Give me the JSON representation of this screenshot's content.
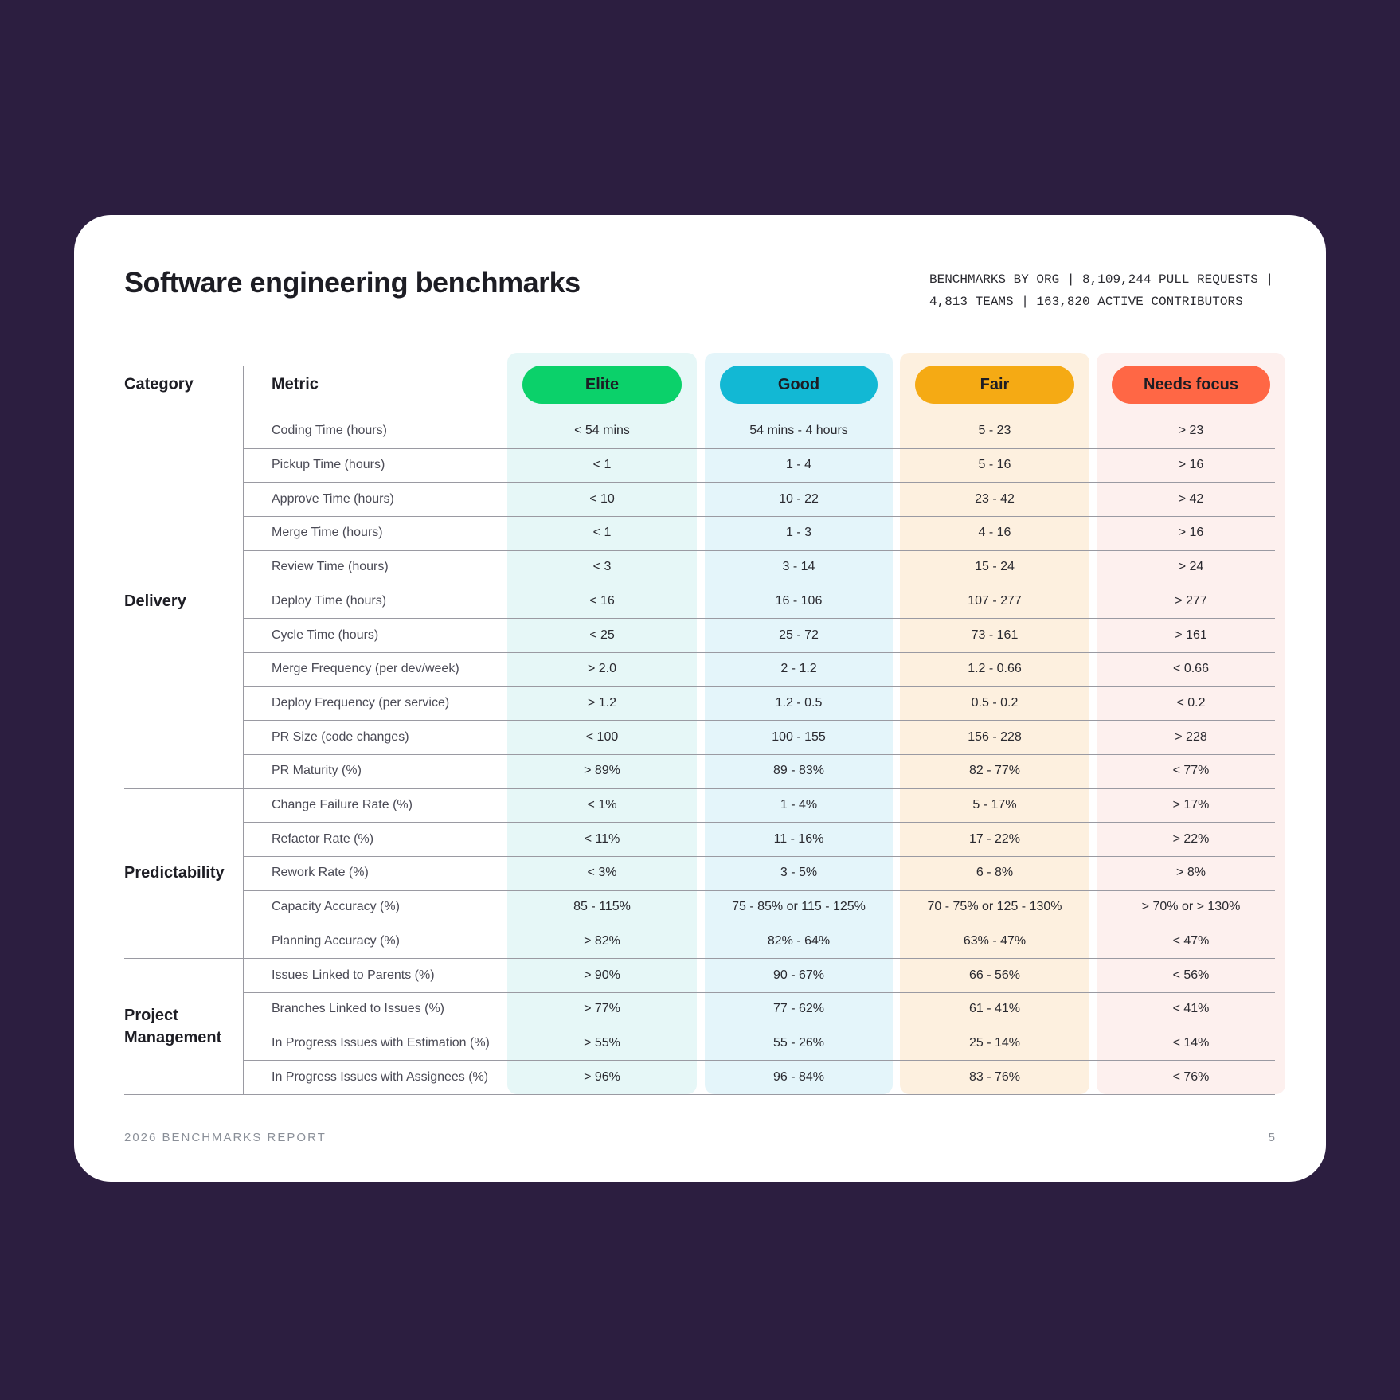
{
  "header": {
    "title": "Software engineering benchmarks",
    "stats": [
      "BENCHMARKS BY ORG |  8,109,244 PULL REQUESTS |",
      "4,813 TEAMS | 163,820 ACTIVE CONTRIBUTORS"
    ]
  },
  "table": {
    "columns": [
      "Category",
      "Metric"
    ],
    "tiers": [
      "Elite",
      "Good",
      "Fair",
      "Needs focus"
    ],
    "groups": [
      {
        "name": "Delivery",
        "rows": [
          [
            "Coding Time (hours)",
            "< 54 mins",
            "54 mins - 4 hours",
            "5 - 23",
            "> 23"
          ],
          [
            "Pickup Time (hours)",
            "< 1",
            "1 - 4",
            "5 - 16",
            "> 16"
          ],
          [
            "Approve Time (hours)",
            "< 10",
            "10 - 22",
            "23 - 42",
            "> 42"
          ],
          [
            "Merge Time (hours)",
            "< 1",
            "1 - 3",
            "4 - 16",
            "> 16"
          ],
          [
            "Review Time (hours)",
            "< 3",
            "3 - 14",
            "15 - 24",
            "> 24"
          ],
          [
            "Deploy Time (hours)",
            "< 16",
            "16 - 106",
            "107 - 277",
            "> 277"
          ],
          [
            "Cycle Time (hours)",
            "< 25",
            "25 - 72",
            "73 - 161",
            "> 161"
          ],
          [
            "Merge Frequency (per dev/week)",
            "> 2.0",
            "2 - 1.2",
            "1.2 - 0.66",
            "< 0.66"
          ],
          [
            "Deploy Frequency (per service)",
            "> 1.2",
            "1.2 - 0.5",
            "0.5 - 0.2",
            "< 0.2"
          ],
          [
            "PR Size (code changes)",
            "< 100",
            "100 - 155",
            "156 - 228",
            "> 228"
          ],
          [
            "PR Maturity (%)",
            "> 89%",
            "89 - 83%",
            "82 - 77%",
            "< 77%"
          ]
        ]
      },
      {
        "name": "Predictability",
        "rows": [
          [
            "Change Failure Rate (%)",
            "< 1%",
            "1 - 4%",
            "5 - 17%",
            "> 17%"
          ],
          [
            "Refactor Rate (%)",
            "< 11%",
            "11 - 16%",
            "17 - 22%",
            "> 22%"
          ],
          [
            "Rework Rate (%)",
            "< 3%",
            "3 - 5%",
            "6 - 8%",
            "> 8%"
          ],
          [
            "Capacity Accuracy (%)",
            "85 - 115%",
            "75 - 85% or 115 - 125%",
            "70 - 75% or 125 - 130%",
            "> 70% or > 130%"
          ],
          [
            "Planning Accuracy (%)",
            "> 82%",
            "82% - 64%",
            "63% - 47%",
            "< 47%"
          ]
        ]
      },
      {
        "name": "Project Management",
        "rows": [
          [
            "Issues Linked to Parents (%)",
            "> 90%",
            "90 - 67%",
            "66 - 56%",
            "< 56%"
          ],
          [
            "Branches Linked to Issues (%)",
            "> 77%",
            "77 - 62%",
            "61 - 41%",
            "< 41%"
          ],
          [
            "In Progress Issues with Estimation (%)",
            "> 55%",
            "55 - 26%",
            "25 - 14%",
            "< 14%"
          ],
          [
            "In Progress Issues with Assignees (%)",
            "> 96%",
            "96 - 84%",
            "83 - 76%",
            "< 76%"
          ]
        ]
      }
    ]
  },
  "footer": {
    "left": "2026 BENCHMARKS REPORT",
    "right": "5"
  }
}
